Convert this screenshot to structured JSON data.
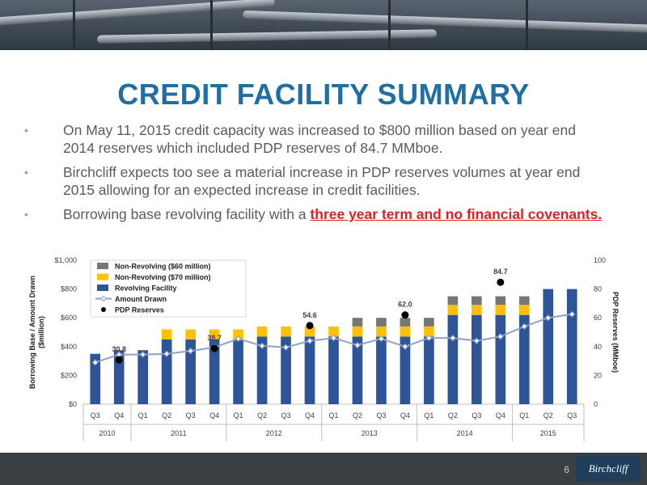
{
  "slide": {
    "title": "CREDIT FACILITY SUMMARY",
    "bullets": [
      {
        "text": "On May 11, 2015 credit capacity was increased to $800 million based on year end 2014 reserves which included PDP reserves of 84.7 MMboe."
      },
      {
        "text": "Birchcliff expects too see a material increase in PDP reserves volumes at year end 2015 allowing for an expected increase in credit facilities."
      },
      {
        "text_before": "Borrowing base revolving facility with a ",
        "emphasis": "three year term and no financial covenants."
      }
    ],
    "page_number": "6",
    "logo_text": "Birchcliff"
  },
  "colors": {
    "title": "#1f6fa3",
    "non_revolving_60": "#767676",
    "non_revolving_70": "#ffc000",
    "revolving": "#2e5597",
    "amount_drawn": "#8ea2c4",
    "pdp": "#000000",
    "emphasis": "#e02020"
  },
  "chart_data": {
    "type": "bar",
    "stacked": true,
    "categories": [
      "Q3",
      "Q4",
      "Q1",
      "Q2",
      "Q3",
      "Q4",
      "Q1",
      "Q2",
      "Q3",
      "Q4",
      "Q1",
      "Q2",
      "Q3",
      "Q4",
      "Q1",
      "Q2",
      "Q3",
      "Q4",
      "Q1",
      "Q2",
      "Q3"
    ],
    "year_groups": [
      {
        "label": "2010",
        "count": 2
      },
      {
        "label": "2011",
        "count": 4
      },
      {
        "label": "2012",
        "count": 4
      },
      {
        "label": "2013",
        "count": 4
      },
      {
        "label": "2014",
        "count": 4
      },
      {
        "label": "2015",
        "count": 3
      }
    ],
    "series": [
      {
        "name": "Non-Revolving ($60 million)",
        "kind": "bar",
        "axis": "left",
        "values": [
          0,
          0,
          0,
          0,
          0,
          0,
          0,
          0,
          0,
          0,
          0,
          60,
          60,
          60,
          60,
          60,
          60,
          60,
          60,
          0,
          0
        ]
      },
      {
        "name": "Non-Revolving ($70 million)",
        "kind": "bar",
        "axis": "left",
        "values": [
          0,
          0,
          0,
          70,
          70,
          70,
          70,
          70,
          70,
          70,
          70,
          70,
          70,
          70,
          70,
          70,
          70,
          70,
          70,
          0,
          0
        ]
      },
      {
        "name": "Revolving Facility",
        "kind": "bar",
        "axis": "left",
        "values": [
          350,
          375,
          375,
          450,
          450,
          450,
          450,
          470,
          470,
          470,
          470,
          470,
          470,
          470,
          470,
          620,
          620,
          620,
          620,
          800,
          800
        ]
      },
      {
        "name": "Amount Drawn",
        "kind": "line",
        "axis": "left",
        "values": [
          290,
          345,
          345,
          350,
          370,
          395,
          455,
          405,
          395,
          440,
          460,
          410,
          455,
          400,
          460,
          460,
          440,
          470,
          540,
          600,
          625
        ]
      },
      {
        "name": "PDP Reserves",
        "kind": "scatter",
        "axis": "right",
        "points": [
          {
            "index": 1,
            "value": 30.8
          },
          {
            "index": 5,
            "value": 38.7
          },
          {
            "index": 9,
            "value": 54.6
          },
          {
            "index": 13,
            "value": 62.0
          },
          {
            "index": 17,
            "value": 84.7
          }
        ]
      }
    ],
    "ylabel": "Borrowing Base / Amount Drawn ($million)",
    "y2label": "PDP Reserves (MMboe)",
    "ylim": [
      0,
      1000
    ],
    "y2lim": [
      0,
      100
    ],
    "yticks": [
      "$0",
      "$200",
      "$400",
      "$600",
      "$800",
      "$1,000"
    ],
    "y2ticks": [
      "0",
      "20",
      "40",
      "60",
      "80",
      "100"
    ],
    "data_labels": [
      "30.8",
      "38.7",
      "54.6",
      "62.0",
      "84.7"
    ],
    "legend": "top-left",
    "grid": false
  }
}
